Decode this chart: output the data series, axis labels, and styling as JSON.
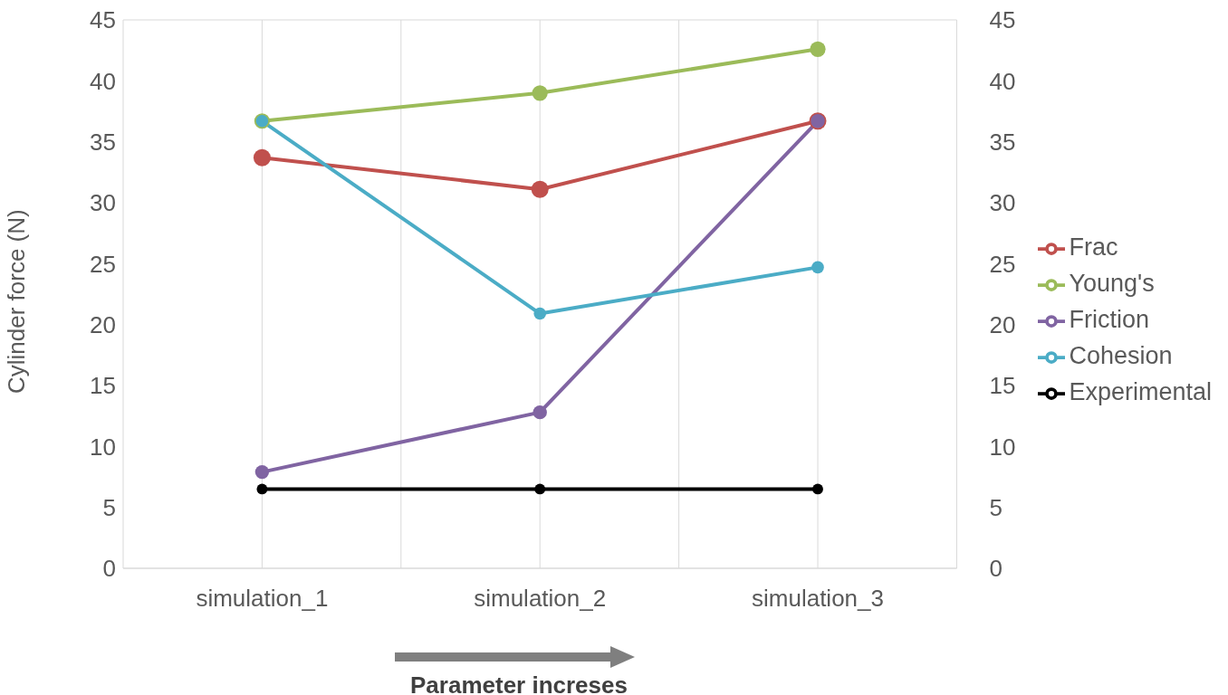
{
  "chart_data": {
    "type": "line",
    "xlabel": "Parameter increses",
    "ylabel": "Cylinder force (N)",
    "categories": [
      "simulation_1",
      "simulation_2",
      "simulation_3"
    ],
    "series": [
      {
        "name": "Frac",
        "color": "#c0504d",
        "values": [
          33.7,
          31.1,
          36.7
        ]
      },
      {
        "name": "Young's",
        "color": "#9bbb59",
        "values": [
          36.7,
          39.0,
          42.6
        ]
      },
      {
        "name": "Friction",
        "color": "#8064a2",
        "values": [
          7.9,
          12.8,
          36.7
        ]
      },
      {
        "name": "Cohesion",
        "color": "#4bacc6",
        "values": [
          36.7,
          20.9,
          24.7
        ]
      },
      {
        "name": "Experimental",
        "color": "#000000",
        "values": [
          6.5,
          6.5,
          6.5
        ]
      }
    ],
    "ylim": [
      0,
      45
    ],
    "yticks": [
      0,
      5,
      10,
      15,
      20,
      25,
      30,
      35,
      40,
      45
    ],
    "y2lim": [
      0,
      45
    ],
    "y2ticks": [
      0,
      5,
      10,
      15,
      20,
      25,
      30,
      35,
      40,
      45
    ],
    "grid": true,
    "legend": "right",
    "marker": "circle",
    "line_style": "solid"
  }
}
